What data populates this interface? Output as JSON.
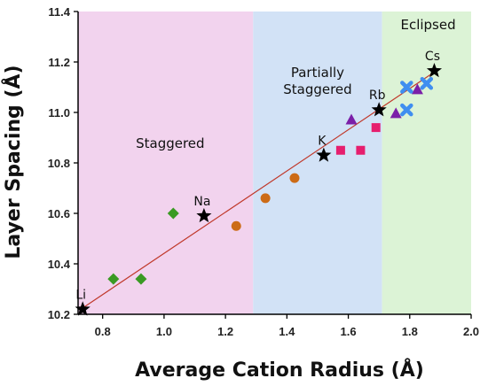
{
  "chart_data": {
    "type": "scatter",
    "xlabel": "Average Cation Radius (Å)",
    "ylabel": "Layer Spacing (Å)",
    "xlim": [
      0.72,
      2.0
    ],
    "ylim": [
      10.2,
      11.4
    ],
    "xticks": [
      0.8,
      1.0,
      1.2,
      1.4,
      1.6,
      1.8,
      2.0
    ],
    "yticks": [
      10.2,
      10.4,
      10.6,
      10.8,
      11.0,
      11.2,
      11.4
    ],
    "xtick_labels": [
      "0.8",
      "1.0",
      "1.2",
      "1.4",
      "1.6",
      "1.8",
      "2.0"
    ],
    "ytick_labels": [
      "10.2",
      "10.4",
      "10.6",
      "10.8",
      "11.0",
      "11.2",
      "11.4"
    ],
    "grid": false,
    "regions": [
      {
        "label": "Staggered",
        "x_range": [
          0.72,
          1.29
        ],
        "color": "#f2d3ee",
        "label_x": 1.02,
        "label_y": 10.86
      },
      {
        "label": "Partially\nStaggered",
        "x_range": [
          1.29,
          1.71
        ],
        "color": "#d2e2f6",
        "label_x": 1.5,
        "label_y": 11.14
      },
      {
        "label": "Eclipsed",
        "x_range": [
          1.71,
          2.0
        ],
        "color": "#dcf3d6",
        "label_x": 1.86,
        "label_y": 11.33
      }
    ],
    "fit_line": {
      "x": [
        0.735,
        1.88
      ],
      "y": [
        10.225,
        11.16
      ],
      "color": "#c0392b"
    },
    "series": [
      {
        "marker": "star",
        "color": "#000000",
        "points": [
          {
            "x": 0.735,
            "y": 10.22,
            "label": "Li"
          },
          {
            "x": 1.13,
            "y": 10.59,
            "label": "Na"
          },
          {
            "x": 1.52,
            "y": 10.83,
            "label": "K"
          },
          {
            "x": 1.7,
            "y": 11.01,
            "label": "Rb"
          },
          {
            "x": 1.88,
            "y": 11.165,
            "label": "Cs"
          }
        ]
      },
      {
        "marker": "diamond",
        "color": "#3a9a23",
        "points": [
          {
            "x": 0.835,
            "y": 10.34
          },
          {
            "x": 0.925,
            "y": 10.34
          },
          {
            "x": 1.03,
            "y": 10.6
          }
        ]
      },
      {
        "marker": "circle",
        "color": "#cc6b16",
        "points": [
          {
            "x": 1.235,
            "y": 10.55
          },
          {
            "x": 1.33,
            "y": 10.66
          },
          {
            "x": 1.425,
            "y": 10.74
          }
        ]
      },
      {
        "marker": "square",
        "color": "#e61e6e",
        "points": [
          {
            "x": 1.575,
            "y": 10.85
          },
          {
            "x": 1.64,
            "y": 10.85
          },
          {
            "x": 1.69,
            "y": 10.94
          }
        ]
      },
      {
        "marker": "triangle",
        "color": "#7b1fa8",
        "points": [
          {
            "x": 1.61,
            "y": 10.97
          },
          {
            "x": 1.755,
            "y": 10.995
          },
          {
            "x": 1.825,
            "y": 11.09
          }
        ]
      },
      {
        "marker": "cross",
        "color": "#3f8ef0",
        "points": [
          {
            "x": 1.79,
            "y": 11.1
          },
          {
            "x": 1.79,
            "y": 11.01
          },
          {
            "x": 1.855,
            "y": 11.115
          }
        ]
      }
    ]
  }
}
